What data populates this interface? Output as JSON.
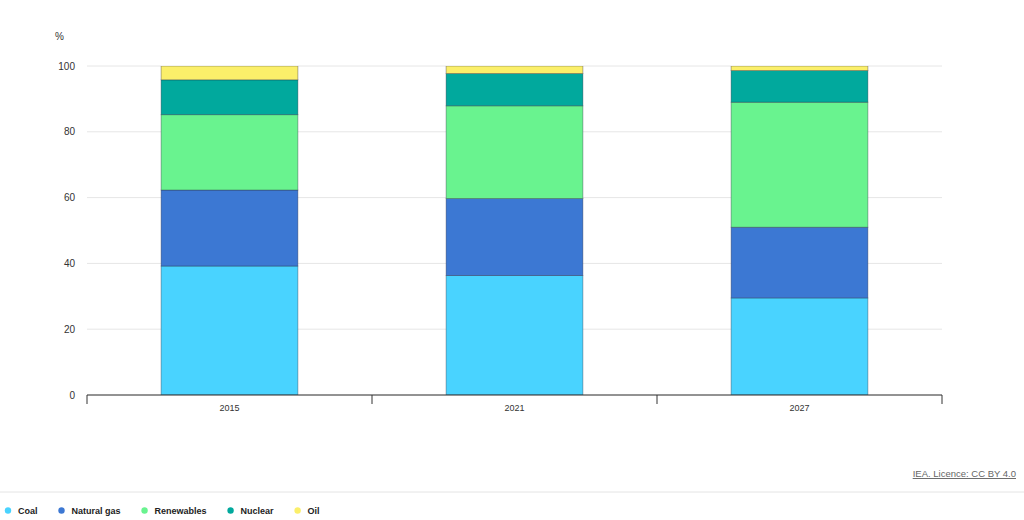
{
  "chart_data": {
    "type": "bar",
    "stacked": true,
    "ylabel": "%",
    "source": "IEA. Licence: CC BY 4.0",
    "categories": [
      "2015",
      "2021",
      "2027"
    ],
    "series": [
      {
        "name": "Coal",
        "color": "#49d3ff",
        "values": [
          39.2,
          36.3,
          29.5
        ]
      },
      {
        "name": "Natural gas",
        "color": "#3c78d3",
        "values": [
          23.1,
          23.4,
          21.5
        ]
      },
      {
        "name": "Renewables",
        "color": "#69f38f",
        "values": [
          22.9,
          28.2,
          38.0
        ]
      },
      {
        "name": "Nuclear",
        "color": "#01a99d",
        "values": [
          10.6,
          9.8,
          9.6
        ]
      },
      {
        "name": "Oil",
        "color": "#fbef6a",
        "values": [
          4.2,
          2.3,
          1.4
        ]
      }
    ],
    "ylim": [
      0,
      100
    ],
    "yticks": [
      0,
      20,
      40,
      60,
      80,
      100
    ],
    "grid": true,
    "legend": "bottom-left"
  }
}
